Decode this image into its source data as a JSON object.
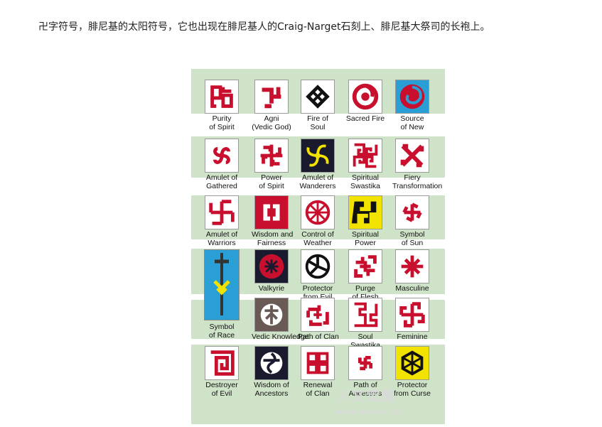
{
  "caption": "卍字符号，腓尼基的太阳符号，它也出现在腓尼基人的Craig-Narget石刻上、腓尼基大祭司的长袍上。",
  "poster": {
    "symbols": {
      "purity_of_spirit": "Purity\nof Spirit",
      "agni": "Agni\n(Vedic God)",
      "fire_of_soul": "Fire of\nSoul",
      "sacred_fire": "Sacred Fire",
      "source_of_new": "Source\nof New",
      "amulet_of_gathered": "Amulet of\nGathered",
      "power_of_spirit": "Power\nof Spirit",
      "amulet_of_wanderers": "Amulet of\nWanderers",
      "spiritual_swastika": "Spiritual\nSwastika",
      "fiery_transformation": "Fiery\nTransformation",
      "amulet_of_warriors": "Amulet of\nWarriors",
      "wisdom_and_fairness": "Wisdom and\nFairness",
      "control_of_weather": "Control of\nWeather",
      "spiritual_power": "Spiritual\nPower",
      "symbol_of_sun": "Symbol\nof Sun",
      "symbol_of_race": "Symbol\nof Race",
      "valkyrie": "Valkyrie",
      "protector_from_evil": "Protector\nfrom Evil",
      "purge_of_flesh": "Purge\nof Flesh",
      "masculine": "Masculine",
      "vedic_knowledge": "Vedic Knowledge",
      "path_of_clan": "Path of Clan",
      "soul_swastika": "Soul\nSwastika",
      "feminine": "Feminine",
      "destroyer_of_evil": "Destroyer\nof Evil",
      "wisdom_of_ancestors": "Wisdom of\nAncestors",
      "renewal_of_clan": "Renewal\nof Clan",
      "path_of_ancestors": "Path of\nAncestors",
      "protector_from_curse": "Protector\nfrom Curse"
    },
    "watermark": {
      "line1": "人文觉醒",
      "line2": "www.awaker.hk"
    }
  },
  "colors": {
    "band": "#cfe3c8",
    "red": "#c8102e",
    "dark": "#1a1a2e",
    "yellow": "#f2e200",
    "blue": "#2a9fd6"
  }
}
